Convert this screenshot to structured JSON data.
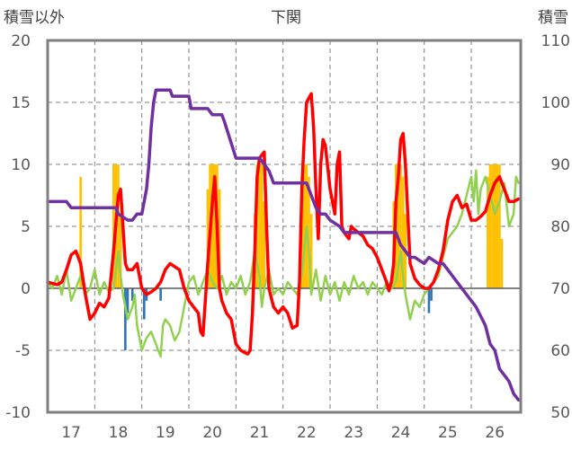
{
  "chart_data": {
    "type": "line",
    "title": "下関",
    "ylabel_left": "積雪以外",
    "ylabel_right": "積雪",
    "x_ticks": [
      "17",
      "18",
      "19",
      "20",
      "21",
      "22",
      "23",
      "24",
      "25",
      "26"
    ],
    "y_left": {
      "min": -10,
      "max": 20,
      "ticks": [
        "20",
        "15",
        "10",
        "5",
        "0",
        "-5",
        "-10"
      ]
    },
    "y_right": {
      "min": 50,
      "max": 110,
      "ticks": [
        "110",
        "100",
        "90",
        "80",
        "70",
        "60",
        "50"
      ]
    },
    "grid": true,
    "colors": {
      "orange_bars": "#FFC000",
      "blue_bars": "#2E75B6",
      "red_line": "#FF0000",
      "green_line": "#92D050",
      "purple_line": "#7030A0"
    },
    "orange_bars": [
      [
        17.2,
        9
      ],
      [
        17.9,
        10
      ],
      [
        17.95,
        10
      ],
      [
        18.0,
        10
      ],
      [
        18.05,
        6
      ],
      [
        19.9,
        8
      ],
      [
        19.95,
        10
      ],
      [
        20.0,
        10
      ],
      [
        20.05,
        10
      ],
      [
        20.1,
        10
      ],
      [
        20.15,
        8
      ],
      [
        20.9,
        6
      ],
      [
        20.95,
        10
      ],
      [
        21.0,
        10
      ],
      [
        21.05,
        10
      ],
      [
        21.1,
        7
      ],
      [
        21.9,
        9
      ],
      [
        21.95,
        10
      ],
      [
        22.0,
        10
      ],
      [
        22.05,
        9
      ],
      [
        22.1,
        6
      ],
      [
        23.85,
        7
      ],
      [
        23.9,
        10
      ],
      [
        23.95,
        10
      ],
      [
        24.0,
        10
      ],
      [
        24.05,
        9
      ],
      [
        24.1,
        6
      ],
      [
        25.85,
        9
      ],
      [
        25.9,
        10
      ],
      [
        25.95,
        10
      ],
      [
        26.0,
        10
      ],
      [
        26.05,
        10
      ],
      [
        26.1,
        10
      ],
      [
        26.15,
        4
      ]
    ],
    "blue_bars": [
      [
        18.15,
        -5
      ],
      [
        18.2,
        -2
      ],
      [
        18.3,
        -1
      ],
      [
        18.55,
        -2.5
      ],
      [
        18.6,
        -1
      ],
      [
        18.9,
        -1
      ],
      [
        24.6,
        -2
      ],
      [
        24.65,
        -1
      ]
    ],
    "red_line": [
      [
        16.5,
        0.5
      ],
      [
        16.7,
        0.3
      ],
      [
        16.8,
        0.5
      ],
      [
        16.9,
        1.5
      ],
      [
        17.0,
        2.7
      ],
      [
        17.1,
        3.0
      ],
      [
        17.2,
        2.0
      ],
      [
        17.3,
        -0.5
      ],
      [
        17.4,
        -2.5
      ],
      [
        17.5,
        -2.0
      ],
      [
        17.6,
        -1.2
      ],
      [
        17.7,
        -1.5
      ],
      [
        17.8,
        -0.8
      ],
      [
        17.9,
        3.0
      ],
      [
        18.0,
        7.5
      ],
      [
        18.05,
        8.0
      ],
      [
        18.1,
        5.0
      ],
      [
        18.15,
        2.0
      ],
      [
        18.2,
        1.5
      ],
      [
        18.3,
        1.5
      ],
      [
        18.4,
        2.0
      ],
      [
        18.5,
        0.0
      ],
      [
        18.6,
        -0.5
      ],
      [
        18.7,
        -0.3
      ],
      [
        18.8,
        0.0
      ],
      [
        18.9,
        0.5
      ],
      [
        19.0,
        1.5
      ],
      [
        19.1,
        2.0
      ],
      [
        19.3,
        1.5
      ],
      [
        19.4,
        0.0
      ],
      [
        19.5,
        -1.0
      ],
      [
        19.6,
        -1.5
      ],
      [
        19.7,
        -2.0
      ],
      [
        19.75,
        -3.5
      ],
      [
        19.8,
        -3.8
      ],
      [
        19.85,
        -1.0
      ],
      [
        19.9,
        2.0
      ],
      [
        20.0,
        7.0
      ],
      [
        20.05,
        9.0
      ],
      [
        20.1,
        5.0
      ],
      [
        20.15,
        0.0
      ],
      [
        20.2,
        -1.0
      ],
      [
        20.3,
        -2.0
      ],
      [
        20.4,
        -2.5
      ],
      [
        20.5,
        -4.5
      ],
      [
        20.6,
        -5.0
      ],
      [
        20.7,
        -5.2
      ],
      [
        20.75,
        -5.3
      ],
      [
        20.8,
        -5.0
      ],
      [
        20.85,
        -2.0
      ],
      [
        20.9,
        3.0
      ],
      [
        20.95,
        9.0
      ],
      [
        21.0,
        10.5
      ],
      [
        21.1,
        11.0
      ],
      [
        21.15,
        5.0
      ],
      [
        21.2,
        0.0
      ],
      [
        21.3,
        -1.5
      ],
      [
        21.4,
        -2.0
      ],
      [
        21.5,
        -1.5
      ],
      [
        21.6,
        -2.0
      ],
      [
        21.7,
        -3.2
      ],
      [
        21.8,
        -3.0
      ],
      [
        21.85,
        0.5
      ],
      [
        21.9,
        8.0
      ],
      [
        21.95,
        12.0
      ],
      [
        22.0,
        15.0
      ],
      [
        22.1,
        15.7
      ],
      [
        22.15,
        13.0
      ],
      [
        22.2,
        8.0
      ],
      [
        22.25,
        4.0
      ],
      [
        22.3,
        10.0
      ],
      [
        22.35,
        12.0
      ],
      [
        22.4,
        11.5
      ],
      [
        22.5,
        8.0
      ],
      [
        22.6,
        6.0
      ],
      [
        22.65,
        10.0
      ],
      [
        22.7,
        11.0
      ],
      [
        22.75,
        5.0
      ],
      [
        22.8,
        4.5
      ],
      [
        22.9,
        4.0
      ],
      [
        22.95,
        5.0
      ],
      [
        23.0,
        4.8
      ],
      [
        23.1,
        4.5
      ],
      [
        23.2,
        4.2
      ],
      [
        23.3,
        3.5
      ],
      [
        23.4,
        3.2
      ],
      [
        23.5,
        2.5
      ],
      [
        23.6,
        1.5
      ],
      [
        23.7,
        0.5
      ],
      [
        23.75,
        -0.2
      ],
      [
        23.8,
        0.5
      ],
      [
        23.85,
        2.0
      ],
      [
        23.9,
        7.0
      ],
      [
        23.95,
        9.0
      ],
      [
        24.0,
        12.0
      ],
      [
        24.05,
        12.5
      ],
      [
        24.1,
        10.0
      ],
      [
        24.15,
        6.0
      ],
      [
        24.2,
        2.0
      ],
      [
        24.3,
        0.8
      ],
      [
        24.4,
        0.3
      ],
      [
        24.5,
        0.0
      ],
      [
        24.6,
        0.0
      ],
      [
        24.7,
        0.5
      ],
      [
        24.8,
        1.5
      ],
      [
        24.9,
        3.0
      ],
      [
        25.0,
        5.5
      ],
      [
        25.1,
        7.0
      ],
      [
        25.2,
        7.5
      ],
      [
        25.3,
        6.5
      ],
      [
        25.4,
        6.8
      ],
      [
        25.5,
        5.5
      ],
      [
        25.6,
        5.5
      ],
      [
        25.7,
        5.8
      ],
      [
        25.8,
        6.2
      ],
      [
        25.9,
        7.5
      ],
      [
        26.0,
        8.5
      ],
      [
        26.1,
        9.0
      ],
      [
        26.2,
        8.0
      ],
      [
        26.3,
        7.0
      ],
      [
        26.4,
        7.0
      ],
      [
        26.5,
        7.2
      ]
    ],
    "green_line": [
      [
        16.5,
        0.5
      ],
      [
        16.6,
        0.0
      ],
      [
        16.7,
        1.0
      ],
      [
        16.8,
        -0.5
      ],
      [
        16.9,
        1.5
      ],
      [
        17.0,
        -1.0
      ],
      [
        17.1,
        0.0
      ],
      [
        17.2,
        1.0
      ],
      [
        17.3,
        -0.5
      ],
      [
        17.4,
        0.0
      ],
      [
        17.5,
        1.5
      ],
      [
        17.6,
        -0.5
      ],
      [
        17.7,
        0.5
      ],
      [
        17.8,
        -0.3
      ],
      [
        17.9,
        0.0
      ],
      [
        18.0,
        3.0
      ],
      [
        18.05,
        1.0
      ],
      [
        18.1,
        -0.5
      ],
      [
        18.2,
        -2.5
      ],
      [
        18.3,
        -1.5
      ],
      [
        18.35,
        -0.5
      ],
      [
        18.4,
        -3.0
      ],
      [
        18.5,
        -5.0
      ],
      [
        18.6,
        -4.0
      ],
      [
        18.7,
        -3.5
      ],
      [
        18.8,
        -4.5
      ],
      [
        18.9,
        -5.5
      ],
      [
        18.95,
        -3.0
      ],
      [
        19.0,
        -2.5
      ],
      [
        19.1,
        -3.0
      ],
      [
        19.2,
        -4.2
      ],
      [
        19.3,
        -3.5
      ],
      [
        19.4,
        -1.5
      ],
      [
        19.5,
        0.5
      ],
      [
        19.6,
        1.0
      ],
      [
        19.7,
        -0.5
      ],
      [
        19.8,
        0.5
      ],
      [
        19.9,
        1.5
      ],
      [
        20.0,
        0.5
      ],
      [
        20.1,
        0.0
      ],
      [
        20.2,
        1.0
      ],
      [
        20.3,
        -0.5
      ],
      [
        20.4,
        0.5
      ],
      [
        20.5,
        0.0
      ],
      [
        20.6,
        1.0
      ],
      [
        20.7,
        -0.5
      ],
      [
        20.8,
        0.5
      ],
      [
        20.9,
        3.0
      ],
      [
        21.0,
        1.0
      ],
      [
        21.05,
        -1.5
      ],
      [
        21.1,
        0.0
      ],
      [
        21.2,
        1.5
      ],
      [
        21.3,
        -0.5
      ],
      [
        21.4,
        0.0
      ],
      [
        21.5,
        -0.5
      ],
      [
        21.6,
        0.5
      ],
      [
        21.7,
        0.0
      ],
      [
        21.8,
        -0.5
      ],
      [
        21.9,
        1.0
      ],
      [
        22.0,
        5.0
      ],
      [
        22.05,
        3.0
      ],
      [
        22.1,
        -0.5
      ],
      [
        22.2,
        1.5
      ],
      [
        22.3,
        -1.0
      ],
      [
        22.4,
        1.0
      ],
      [
        22.5,
        -0.5
      ],
      [
        22.6,
        0.5
      ],
      [
        22.7,
        -1.0
      ],
      [
        22.8,
        0.5
      ],
      [
        22.9,
        -0.5
      ],
      [
        23.0,
        1.0
      ],
      [
        23.1,
        0.0
      ],
      [
        23.2,
        0.5
      ],
      [
        23.3,
        -0.5
      ],
      [
        23.4,
        0.5
      ],
      [
        23.5,
        0.0
      ],
      [
        23.6,
        -0.5
      ],
      [
        23.7,
        0.5
      ],
      [
        23.8,
        0.0
      ],
      [
        23.9,
        0.5
      ],
      [
        24.0,
        3.0
      ],
      [
        24.05,
        1.0
      ],
      [
        24.1,
        -0.5
      ],
      [
        24.2,
        -2.5
      ],
      [
        24.3,
        -1.0
      ],
      [
        24.4,
        -1.5
      ],
      [
        24.5,
        -0.5
      ],
      [
        24.6,
        0.0
      ],
      [
        24.7,
        0.5
      ],
      [
        24.8,
        1.0
      ],
      [
        24.9,
        2.5
      ],
      [
        25.0,
        4.0
      ],
      [
        25.1,
        4.5
      ],
      [
        25.2,
        5.0
      ],
      [
        25.3,
        6.0
      ],
      [
        25.4,
        7.5
      ],
      [
        25.5,
        9.0
      ],
      [
        25.55,
        7.0
      ],
      [
        25.6,
        9.5
      ],
      [
        25.65,
        6.0
      ],
      [
        25.7,
        8.0
      ],
      [
        25.8,
        9.0
      ],
      [
        25.9,
        7.5
      ],
      [
        26.0,
        6.0
      ],
      [
        26.1,
        7.0
      ],
      [
        26.2,
        8.5
      ],
      [
        26.3,
        5.0
      ],
      [
        26.4,
        6.0
      ],
      [
        26.45,
        9.0
      ],
      [
        26.5,
        8.5
      ]
    ],
    "purple_line": [
      [
        16.5,
        84
      ],
      [
        16.9,
        84
      ],
      [
        17.0,
        83
      ],
      [
        17.6,
        83
      ],
      [
        17.95,
        83
      ],
      [
        18.0,
        82
      ],
      [
        18.2,
        81
      ],
      [
        18.3,
        81
      ],
      [
        18.4,
        82
      ],
      [
        18.5,
        82
      ],
      [
        18.6,
        86
      ],
      [
        18.65,
        90
      ],
      [
        18.7,
        96
      ],
      [
        18.75,
        100
      ],
      [
        18.8,
        102
      ],
      [
        19.1,
        102
      ],
      [
        19.15,
        101
      ],
      [
        19.5,
        101
      ],
      [
        19.55,
        99
      ],
      [
        19.9,
        99
      ],
      [
        20.0,
        98
      ],
      [
        20.2,
        98
      ],
      [
        20.25,
        97
      ],
      [
        20.5,
        91
      ],
      [
        20.6,
        91
      ],
      [
        21.0,
        91
      ],
      [
        21.1,
        90
      ],
      [
        21.2,
        89
      ],
      [
        21.3,
        87
      ],
      [
        21.5,
        87
      ],
      [
        22.0,
        87
      ],
      [
        22.1,
        85
      ],
      [
        22.2,
        83
      ],
      [
        22.3,
        82
      ],
      [
        22.4,
        82
      ],
      [
        22.5,
        81
      ],
      [
        22.7,
        80
      ],
      [
        22.8,
        79
      ],
      [
        22.9,
        79
      ],
      [
        23.0,
        79
      ],
      [
        23.2,
        79
      ],
      [
        23.5,
        79
      ],
      [
        23.8,
        79
      ],
      [
        23.9,
        79
      ],
      [
        24.0,
        77
      ],
      [
        24.1,
        76
      ],
      [
        24.2,
        75
      ],
      [
        24.3,
        75
      ],
      [
        24.5,
        74
      ],
      [
        24.6,
        75
      ],
      [
        24.8,
        74
      ],
      [
        24.9,
        74
      ],
      [
        25.0,
        73
      ],
      [
        25.2,
        71
      ],
      [
        25.4,
        69
      ],
      [
        25.6,
        67
      ],
      [
        25.8,
        64
      ],
      [
        25.9,
        61
      ],
      [
        26.0,
        60
      ],
      [
        26.1,
        57
      ],
      [
        26.2,
        56
      ],
      [
        26.3,
        55
      ],
      [
        26.4,
        53
      ],
      [
        26.5,
        52
      ]
    ]
  }
}
